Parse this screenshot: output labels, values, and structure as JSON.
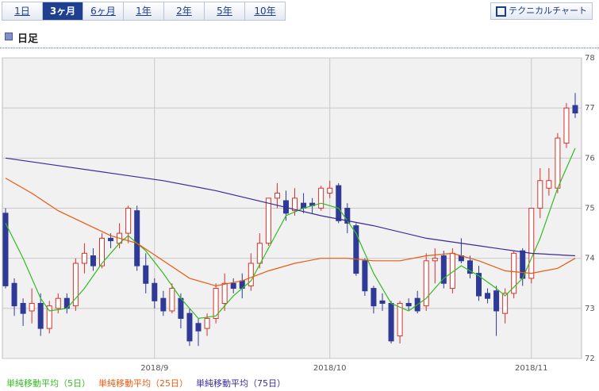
{
  "tabs": [
    "1日",
    "3ヶ月",
    "6ヶ月",
    "1年",
    "2年",
    "5年",
    "10年"
  ],
  "button": "テクニカルチャート",
  "heading": "日足",
  "chart_data": {
    "type": "candlestick",
    "categories": [
      null,
      null,
      null,
      null,
      null,
      null,
      null,
      null,
      null,
      null,
      null,
      null,
      null,
      null,
      null,
      null,
      null,
      "2018/9",
      null,
      null,
      null,
      null,
      null,
      null,
      null,
      null,
      null,
      null,
      null,
      null,
      null,
      null,
      null,
      null,
      null,
      null,
      null,
      "2018/10",
      null,
      null,
      null,
      null,
      null,
      null,
      null,
      null,
      null,
      null,
      null,
      null,
      null,
      null,
      null,
      null,
      null,
      null,
      null,
      null,
      null,
      null,
      "2018/11",
      null,
      null,
      null,
      null,
      null
    ],
    "open": [
      74.9,
      73.5,
      73.1,
      72.95,
      73.1,
      72.6,
      73.0,
      73.2,
      73.05,
      73.9,
      74.05,
      73.85,
      74.4,
      74.3,
      74.5,
      74.95,
      73.85,
      73.5,
      73.2,
      72.95,
      73.2,
      72.9,
      72.7,
      72.6,
      72.8,
      73.1,
      73.5,
      73.55,
      73.45,
      73.9,
      74.3,
      75.2,
      75.15,
      74.95,
      75.1,
      75.1,
      75.0,
      75.3,
      75.45,
      75.0,
      74.65,
      73.95,
      73.4,
      73.15,
      73.1,
      72.45,
      73.1,
      73.2,
      73.05,
      73.95,
      74.05,
      73.4,
      74.05,
      73.95,
      73.7,
      73.3,
      73.35,
      72.9,
      73.3,
      74.15,
      73.6,
      75.0,
      75.4,
      75.4,
      76.3,
      77.05
    ],
    "high": [
      75.0,
      73.6,
      73.2,
      73.4,
      73.3,
      73.15,
      73.3,
      73.3,
      74.0,
      74.3,
      74.2,
      74.5,
      74.5,
      74.7,
      75.05,
      75.05,
      74.1,
      73.6,
      73.35,
      73.5,
      73.3,
      73.0,
      72.8,
      72.9,
      73.5,
      73.7,
      73.6,
      73.7,
      74.1,
      74.5,
      75.2,
      75.5,
      75.35,
      75.4,
      75.3,
      75.2,
      75.45,
      75.55,
      75.5,
      75.1,
      74.7,
      74.0,
      73.45,
      73.3,
      73.15,
      73.15,
      73.2,
      73.35,
      74.1,
      74.2,
      74.15,
      74.2,
      74.4,
      74.05,
      73.85,
      73.4,
      73.45,
      73.4,
      74.15,
      74.2,
      75.0,
      75.8,
      75.8,
      76.5,
      77.1,
      77.3
    ],
    "low": [
      73.4,
      72.85,
      72.65,
      72.7,
      72.45,
      72.5,
      72.9,
      72.9,
      72.95,
      73.7,
      73.75,
      73.8,
      74.2,
      74.2,
      74.3,
      73.75,
      73.3,
      73.0,
      72.85,
      72.9,
      72.6,
      72.25,
      72.25,
      72.45,
      72.7,
      72.95,
      73.3,
      73.2,
      73.35,
      73.8,
      74.25,
      75.0,
      74.75,
      74.85,
      74.9,
      74.9,
      74.95,
      75.2,
      74.7,
      74.5,
      73.65,
      73.25,
      72.9,
      72.95,
      72.3,
      72.3,
      72.95,
      72.9,
      72.95,
      73.5,
      73.4,
      73.3,
      73.9,
      73.6,
      73.15,
      73.1,
      72.45,
      72.7,
      73.2,
      73.45,
      73.5,
      74.8,
      75.25,
      75.3,
      76.2,
      76.8
    ],
    "close": [
      73.45,
      73.05,
      72.9,
      73.1,
      72.6,
      73.05,
      73.2,
      73.0,
      73.9,
      74.1,
      73.85,
      74.4,
      74.35,
      74.5,
      75.0,
      73.85,
      73.5,
      73.15,
      72.95,
      73.4,
      72.8,
      72.35,
      72.55,
      72.8,
      73.4,
      73.5,
      73.4,
      73.4,
      73.9,
      74.3,
      75.2,
      75.3,
      74.9,
      75.2,
      75.0,
      75.05,
      75.4,
      75.4,
      74.75,
      74.7,
      73.7,
      73.35,
      73.05,
      73.1,
      72.35,
      73.1,
      73.05,
      72.95,
      73.95,
      74.0,
      73.5,
      74.1,
      73.95,
      73.7,
      73.25,
      73.2,
      72.95,
      73.3,
      74.1,
      73.6,
      75.0,
      75.55,
      75.55,
      76.4,
      77.0,
      76.9
    ],
    "up_color": "#d9302a",
    "down_color": "#2e3a96",
    "ylim": [
      72,
      78
    ],
    "yticks": [
      72,
      73,
      74,
      75,
      76,
      77,
      78
    ],
    "grid": true,
    "series": [
      {
        "name": "単純移動平均（5日）",
        "color": "#33bb22",
        "x": [
          0,
          2,
          4,
          5,
          7,
          9,
          11,
          13,
          14,
          16,
          18,
          20,
          22,
          24,
          26,
          28,
          30,
          32,
          34,
          36,
          38,
          40,
          42,
          44,
          46,
          48,
          50,
          52,
          54,
          56,
          57,
          59,
          61,
          63,
          65
        ],
        "values": [
          74.7,
          74.0,
          73.2,
          72.95,
          73.0,
          73.4,
          73.9,
          74.3,
          74.45,
          74.15,
          73.7,
          73.2,
          72.8,
          72.85,
          73.25,
          73.55,
          74.2,
          74.85,
          75.0,
          75.1,
          75.0,
          74.5,
          73.7,
          73.1,
          72.95,
          73.2,
          73.6,
          73.85,
          73.65,
          73.4,
          73.25,
          73.6,
          74.4,
          75.4,
          76.2
        ]
      },
      {
        "name": "単純移動平均（25日）",
        "color": "#e85a10",
        "x": [
          0,
          3,
          6,
          9,
          12,
          15,
          18,
          21,
          24,
          27,
          30,
          33,
          36,
          39,
          42,
          45,
          48,
          51,
          54,
          57,
          60,
          63,
          65
        ],
        "values": [
          75.6,
          75.3,
          74.95,
          74.7,
          74.45,
          74.3,
          73.95,
          73.6,
          73.45,
          73.55,
          73.75,
          73.9,
          74.0,
          74.0,
          73.95,
          73.95,
          74.05,
          74.1,
          73.95,
          73.75,
          73.7,
          73.8,
          74.0
        ]
      },
      {
        "name": "単純移動平均（75日）",
        "color": "#3a2a9a",
        "x": [
          0,
          6,
          12,
          18,
          24,
          30,
          36,
          42,
          48,
          54,
          60,
          65
        ],
        "values": [
          76.0,
          75.85,
          75.7,
          75.55,
          75.35,
          75.1,
          74.85,
          74.65,
          74.4,
          74.25,
          74.1,
          74.05
        ]
      }
    ]
  }
}
